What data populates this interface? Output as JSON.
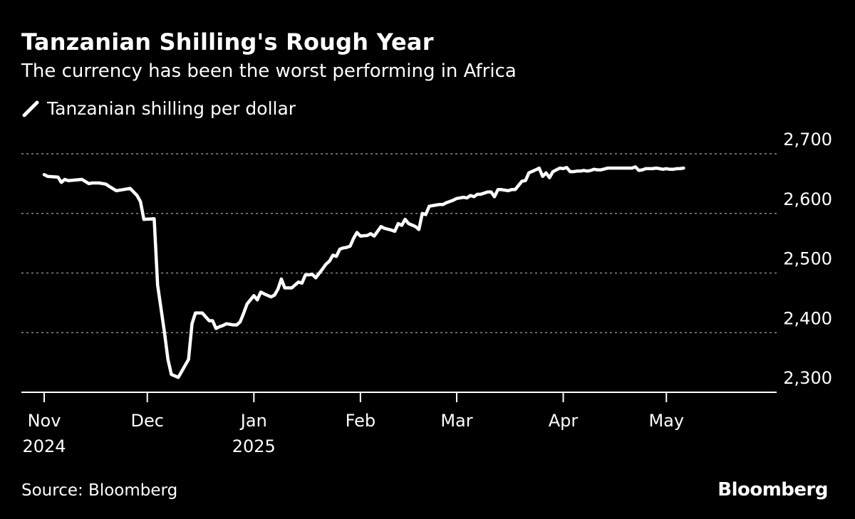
{
  "title": "Tanzanian Shilling's Rough Year",
  "subtitle": "The currency has been the worst performing in Africa",
  "source": "Source: Bloomberg",
  "brand": "Bloomberg",
  "colors": {
    "background": "#000000",
    "line": "#ffffff",
    "grid": "#8a8a8a"
  },
  "chart_data": {
    "type": "line",
    "legend": "top-left",
    "grid": true,
    "ylim": [
      2300,
      2700
    ],
    "yticks": [
      {
        "value": 2700,
        "label": "2,700"
      },
      {
        "value": 2600,
        "label": "2,600"
      },
      {
        "value": 2500,
        "label": "2,500"
      },
      {
        "value": 2400,
        "label": "2,400"
      },
      {
        "value": 2300,
        "label": "2,300"
      }
    ],
    "xlim": [
      "2024-11-01",
      "2025-05-31"
    ],
    "xticks": [
      {
        "value": "2024-11-01",
        "label": [
          "Nov",
          "2024"
        ]
      },
      {
        "value": "2024-12-01",
        "label": [
          "Dec"
        ]
      },
      {
        "value": "2025-01-01",
        "label": [
          "Jan",
          "2025"
        ]
      },
      {
        "value": "2025-02-01",
        "label": [
          "Feb"
        ]
      },
      {
        "value": "2025-03-01",
        "label": [
          "Mar"
        ]
      },
      {
        "value": "2025-04-01",
        "label": [
          "Apr"
        ]
      },
      {
        "value": "2025-05-01",
        "label": [
          "May"
        ]
      }
    ],
    "series": [
      {
        "name": "Tanzanian shilling per dollar",
        "x": [
          "2024-11-01",
          "2024-11-02",
          "2024-11-05",
          "2024-11-06",
          "2024-11-07",
          "2024-11-08",
          "2024-11-10",
          "2024-11-12",
          "2024-11-14",
          "2024-11-15",
          "2024-11-17",
          "2024-11-19",
          "2024-11-20",
          "2024-11-22",
          "2024-11-24",
          "2024-11-26",
          "2024-11-28",
          "2024-11-29",
          "2024-11-30",
          "2024-12-03",
          "2024-12-04",
          "2024-12-06",
          "2024-12-07",
          "2024-12-08",
          "2024-12-10",
          "2024-12-12",
          "2024-12-13",
          "2024-12-14",
          "2024-12-15",
          "2024-12-16",
          "2024-12-17",
          "2024-12-19",
          "2024-12-20",
          "2024-12-21",
          "2024-12-22",
          "2024-12-23",
          "2024-12-24",
          "2024-12-26",
          "2024-12-27",
          "2024-12-28",
          "2024-12-29",
          "2024-12-30",
          "2025-01-01",
          "2025-01-02",
          "2025-01-03",
          "2025-01-04",
          "2025-01-06",
          "2025-01-07",
          "2025-01-08",
          "2025-01-09",
          "2025-01-10",
          "2025-01-11",
          "2025-01-12",
          "2025-01-14",
          "2025-01-15",
          "2025-01-16",
          "2025-01-17",
          "2025-01-18",
          "2025-01-19",
          "2025-01-21",
          "2025-01-22",
          "2025-01-23",
          "2025-01-24",
          "2025-01-25",
          "2025-01-26",
          "2025-01-27",
          "2025-01-28",
          "2025-01-29",
          "2025-01-30",
          "2025-01-31",
          "2025-02-01",
          "2025-02-03",
          "2025-02-04",
          "2025-02-05",
          "2025-02-07",
          "2025-02-08",
          "2025-02-10",
          "2025-02-11",
          "2025-02-12",
          "2025-02-13",
          "2025-02-14",
          "2025-02-15",
          "2025-02-17",
          "2025-02-18",
          "2025-02-19",
          "2025-02-20",
          "2025-02-21",
          "2025-02-22",
          "2025-02-24",
          "2025-02-25",
          "2025-02-26",
          "2025-02-27",
          "2025-02-28",
          "2025-03-01",
          "2025-03-03",
          "2025-03-04",
          "2025-03-05",
          "2025-03-06",
          "2025-03-07",
          "2025-03-08",
          "2025-03-10",
          "2025-03-11",
          "2025-03-12",
          "2025-03-13",
          "2025-03-14",
          "2025-03-16",
          "2025-03-17",
          "2025-03-18",
          "2025-03-20",
          "2025-03-21",
          "2025-03-22",
          "2025-03-24",
          "2025-03-25",
          "2025-03-26",
          "2025-03-27",
          "2025-03-28",
          "2025-03-29",
          "2025-03-31",
          "2025-04-01",
          "2025-04-02",
          "2025-04-03",
          "2025-04-04",
          "2025-04-05",
          "2025-04-06",
          "2025-04-07",
          "2025-04-08",
          "2025-04-09",
          "2025-04-10",
          "2025-04-11",
          "2025-04-12",
          "2025-04-14",
          "2025-04-15",
          "2025-04-17",
          "2025-04-18",
          "2025-04-20",
          "2025-04-21",
          "2025-04-22",
          "2025-04-23",
          "2025-04-24",
          "2025-04-25",
          "2025-04-27",
          "2025-04-28",
          "2025-04-29",
          "2025-04-30",
          "2025-05-01",
          "2025-05-02",
          "2025-05-03",
          "2025-05-04",
          "2025-05-05",
          "2025-05-06"
        ],
        "y": [
          2665,
          2662,
          2661,
          2652,
          2657,
          2655,
          2656,
          2657,
          2650,
          2651,
          2651,
          2649,
          2645,
          2638,
          2640,
          2642,
          2630,
          2620,
          2590,
          2591,
          2480,
          2400,
          2355,
          2330,
          2325,
          2345,
          2355,
          2415,
          2433,
          2433,
          2433,
          2420,
          2420,
          2407,
          2410,
          2412,
          2415,
          2413,
          2413,
          2418,
          2432,
          2448,
          2462,
          2455,
          2468,
          2465,
          2460,
          2463,
          2473,
          2490,
          2475,
          2475,
          2475,
          2485,
          2483,
          2497,
          2497,
          2498,
          2492,
          2507,
          2515,
          2520,
          2530,
          2528,
          2540,
          2542,
          2543,
          2545,
          2558,
          2568,
          2562,
          2563,
          2566,
          2562,
          2578,
          2575,
          2572,
          2570,
          2583,
          2580,
          2590,
          2583,
          2578,
          2573,
          2600,
          2598,
          2612,
          2613,
          2615,
          2615,
          2618,
          2620,
          2622,
          2625,
          2627,
          2626,
          2630,
          2628,
          2632,
          2632,
          2636,
          2636,
          2628,
          2640,
          2640,
          2638,
          2640,
          2640,
          2654,
          2655,
          2668,
          2673,
          2676,
          2662,
          2668,
          2660,
          2670,
          2676,
          2675,
          2677,
          2670,
          2670,
          2671,
          2671,
          2672,
          2671,
          2672,
          2674,
          2673,
          2673,
          2676,
          2676,
          2676,
          2676,
          2676,
          2676,
          2678,
          2672,
          2673,
          2675,
          2675,
          2676,
          2675,
          2674,
          2675,
          2674,
          2674,
          2675,
          2675,
          2676
        ]
      }
    ]
  }
}
